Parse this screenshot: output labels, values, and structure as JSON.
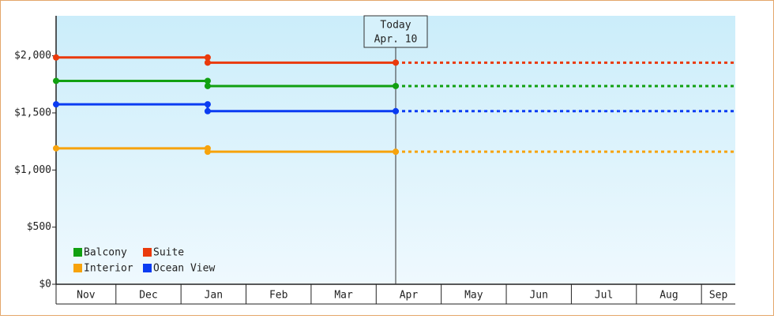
{
  "chart_data": {
    "type": "step-line",
    "categories": [
      "Nov",
      "Dec",
      "Jan",
      "Feb",
      "Mar",
      "Apr",
      "May",
      "Jun",
      "Jul",
      "Aug",
      "Sep"
    ],
    "xlim": [
      0.08,
      10.52
    ],
    "ylim": [
      0,
      2350
    ],
    "yticks": [
      {
        "value": 0,
        "label": "$0"
      },
      {
        "value": 500,
        "label": "$500"
      },
      {
        "value": 1000,
        "label": "$1,000"
      },
      {
        "value": 1500,
        "label": "$1,500"
      },
      {
        "value": 2000,
        "label": "$2,000"
      }
    ],
    "grid": false,
    "legend": "lower left",
    "today": {
      "title": "Today",
      "date": "Apr. 10",
      "x": 5.3
    },
    "series": [
      {
        "name": "Balcony",
        "color": "#11a011",
        "x": [
          0.08,
          2.41,
          2.41,
          5.3,
          10.52
        ],
        "values": [
          1780,
          1780,
          1735,
          1735,
          1735
        ]
      },
      {
        "name": "Suite",
        "color": "#ea3a0c",
        "x": [
          0.08,
          2.41,
          2.41,
          5.3,
          10.52
        ],
        "values": [
          1985,
          1985,
          1940,
          1940,
          1940
        ]
      },
      {
        "name": "Interior",
        "color": "#f7a30c",
        "x": [
          0.08,
          2.41,
          2.41,
          5.3,
          10.52
        ],
        "values": [
          1190,
          1190,
          1160,
          1160,
          1160
        ]
      },
      {
        "name": "Ocean View",
        "color": "#0a3cf2",
        "x": [
          0.08,
          2.41,
          2.41,
          5.3,
          10.52
        ],
        "values": [
          1575,
          1575,
          1515,
          1515,
          1515
        ]
      }
    ]
  }
}
